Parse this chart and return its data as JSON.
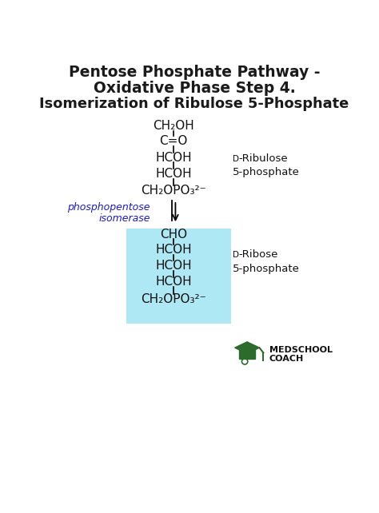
{
  "title_line1": "Pentose Phosphate Pathway -",
  "title_line2": "Oxidative Phase Step 4.",
  "title_line3": "Isomerization of Ribulose 5-Phosphate",
  "bg_color": "#ffffff",
  "title_color": "#1a1a1a",
  "body_text_color": "#111111",
  "enzyme_color": "#1a1acc",
  "highlight_color": "#aee8f5",
  "label1_d": "D",
  "label1_rest_line1": "-Ribulose",
  "label1_line2": "5-phosphate",
  "label2_d": "D",
  "label2_rest_line1": "-Ribose",
  "label2_line2": "5-phosphate",
  "enzyme_text_line1": "phosphopentose",
  "enzyme_text_line2": "isomerase",
  "molecule1": [
    "CH₂OH",
    "C=O",
    "HCOH",
    "HCOH",
    "CH₂OPO₃²⁻"
  ],
  "molecule2": [
    "CHO",
    "HCOH",
    "HCOH",
    "HCOH",
    "CH₂OPO₃²⁻"
  ],
  "figsize": [
    4.74,
    6.42
  ],
  "dpi": 100
}
